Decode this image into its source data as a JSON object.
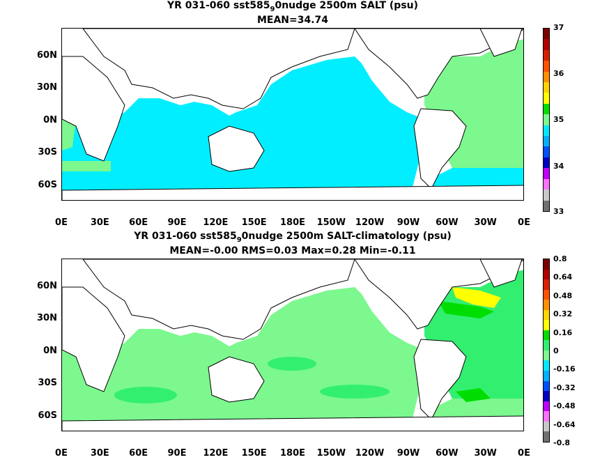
{
  "panel1": {
    "title_prefix": "YR 031-060 sst585",
    "title_sub": "9",
    "title_suffix": "0nudge 2500m SALT (psu)",
    "stats": "MEAN=34.74",
    "colorbar_ticks": [
      "37",
      "36",
      "35",
      "34",
      "33"
    ],
    "colorbar_colors": [
      "#7a0000",
      "#b00000",
      "#d82000",
      "#ff5000",
      "#ff9000",
      "#ffd400",
      "#ffff00",
      "#00dd00",
      "#7cf88e",
      "#00e8ff",
      "#00b0ff",
      "#0050ff",
      "#0000c0",
      "#c000ff",
      "#ff70ff",
      "#c8c8c8",
      "#707070"
    ]
  },
  "panel2": {
    "title_prefix": "YR 031-060 sst585",
    "title_sub": "9",
    "title_suffix": "0nudge 2500m SALT-climatology (psu)",
    "stats": "MEAN=-0.00   RMS=0.03   Max=0.28   Min=-0.11",
    "colorbar_ticks": [
      "0.8",
      "0.64",
      "0.48",
      "0.32",
      "0.16",
      "0",
      "-0.16",
      "-0.32",
      "-0.48",
      "-0.64",
      "-0.8"
    ],
    "colorbar_colors": [
      "#7a0000",
      "#b00000",
      "#d82000",
      "#ff5000",
      "#ff9000",
      "#ffd400",
      "#ffff00",
      "#00dd00",
      "#33ef70",
      "#7cf88e",
      "#00e8ff",
      "#00b0ff",
      "#0050ff",
      "#0000c0",
      "#c000ff",
      "#ff70ff",
      "#c8c8c8",
      "#707070"
    ]
  },
  "axes": {
    "x_ticks": [
      "0E",
      "30E",
      "60E",
      "90E",
      "120E",
      "150E",
      "180E",
      "150W",
      "120W",
      "90W",
      "60W",
      "30W",
      "0E"
    ],
    "y_ticks": [
      "60N",
      "30N",
      "0N",
      "30S",
      "60S"
    ]
  },
  "colors": {
    "ocean_pacific_indian": "#00eeff",
    "ocean_atlantic": "#7cf88e",
    "ocean_green": "#33ef70",
    "anomaly_high": "#ffff00",
    "anomaly_mid": "#00dd00",
    "land": "#ffffff",
    "coast": "#000000"
  }
}
